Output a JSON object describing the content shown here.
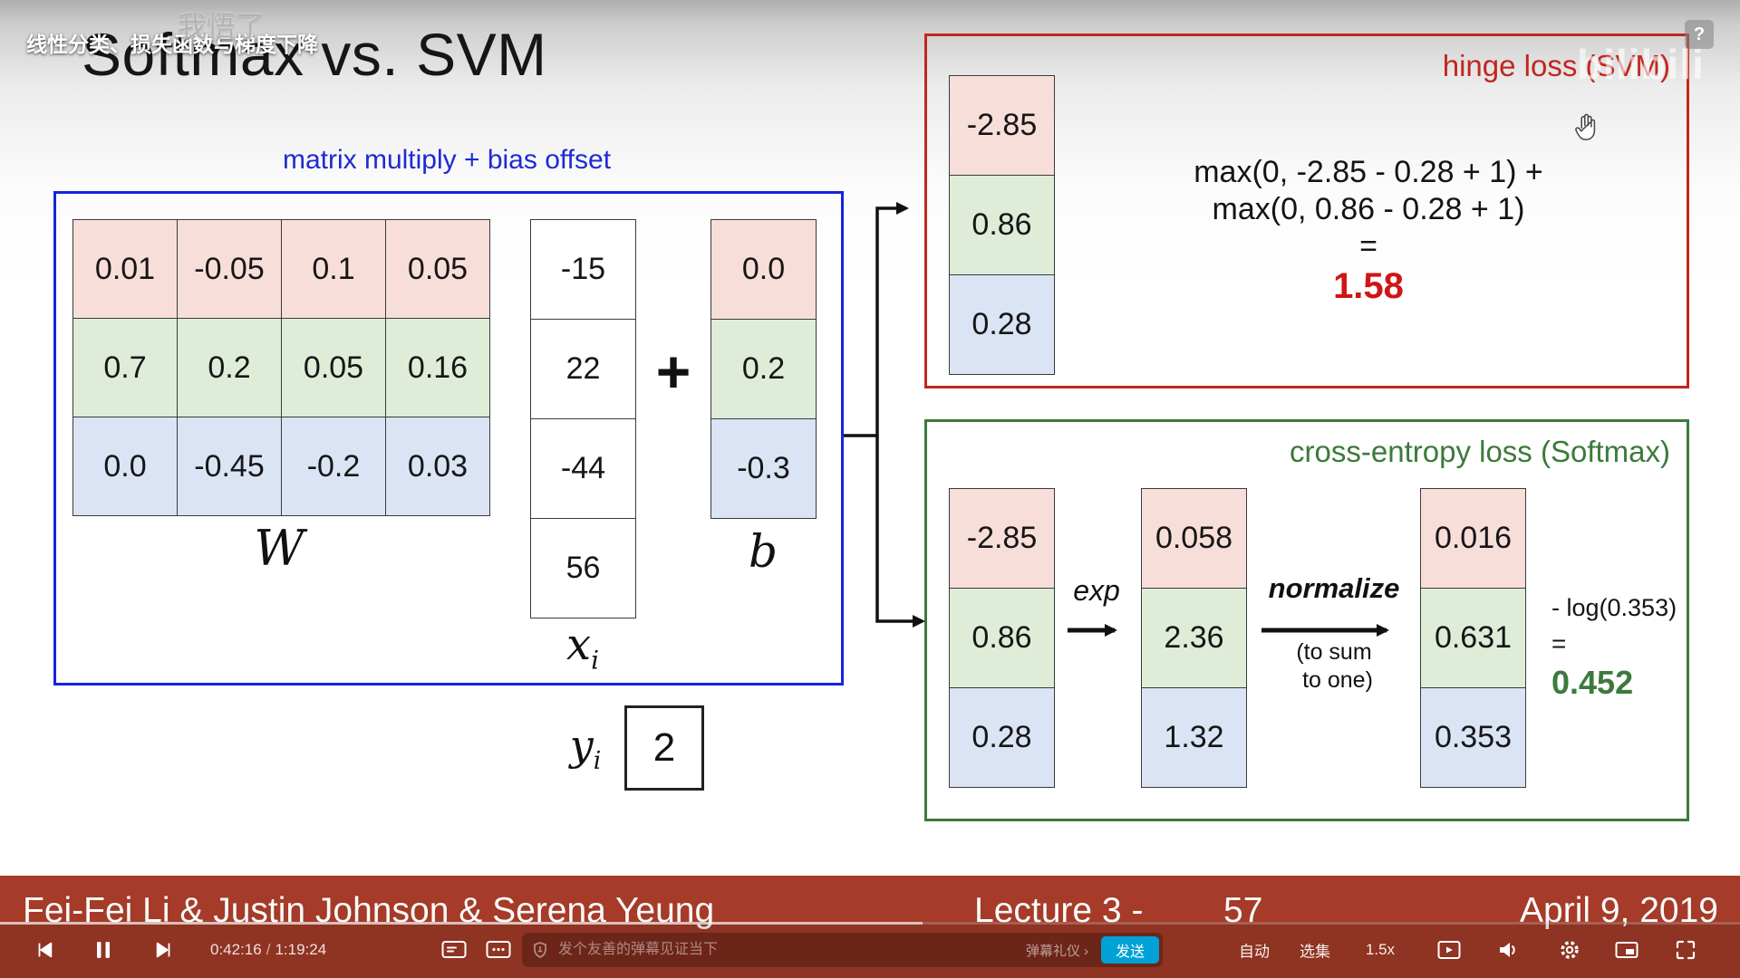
{
  "overlays": {
    "video_title": "线性分类、损失函数与梯度下降",
    "danmaku_comment": "我悟了",
    "help_label": "?",
    "watermark": "bilibili"
  },
  "slide": {
    "title": "Softmax vs. SVM",
    "matrix_caption": "matrix multiply + bias offset",
    "labels": {
      "w": "W",
      "x": "x",
      "b": "b",
      "y": "y",
      "sub_i": "i",
      "plus": "+"
    },
    "w_matrix": {
      "rows": [
        {
          "cells": [
            "0.01",
            "-0.05",
            "0.1",
            "0.05"
          ]
        },
        {
          "cells": [
            "0.7",
            "0.2",
            "0.05",
            "0.16"
          ]
        },
        {
          "cells": [
            "0.0",
            "-0.45",
            "-0.2",
            "0.03"
          ]
        }
      ]
    },
    "x_vector": {
      "cells": [
        "-15",
        "22",
        "-44",
        "56"
      ]
    },
    "b_vector": {
      "cells": [
        "0.0",
        "0.2",
        "-0.3"
      ]
    },
    "y_value": "2",
    "svm": {
      "title": "hinge loss (SVM)",
      "scores": [
        "-2.85",
        "0.86",
        "0.28"
      ],
      "formula_line1": "max(0, -2.85 - 0.28 + 1) +",
      "formula_line2": "max(0, 0.86 - 0.28 + 1)",
      "equals": "=",
      "result": "1.58"
    },
    "softmax": {
      "title": "cross-entropy loss (Softmax)",
      "scores": [
        "-2.85",
        "0.86",
        "0.28"
      ],
      "exp_label": "exp",
      "exp_values": [
        "0.058",
        "2.36",
        "1.32"
      ],
      "normalize_label": "normalize",
      "normalize_note_1": "(to sum",
      "normalize_note_2": "to one)",
      "normalized_values": [
        "0.016",
        "0.631",
        "0.353"
      ],
      "log_expr": "- log(0.353)",
      "equals": "=",
      "result": "0.452"
    }
  },
  "footer": {
    "authors": "Fei-Fei Li & Justin Johnson & Serena Yeung",
    "lecture_label": "Lecture 3 -",
    "slide_number": "57",
    "date": "April 9, 2019"
  },
  "player": {
    "current_time": "0:42:16",
    "time_separator": "/",
    "duration": "1:19:24",
    "progress_percent": 53,
    "danmaku_placeholder": "发个友善的弹幕见证当下",
    "etiquette_label": "弹幕礼仪",
    "etiquette_chevron": "›",
    "send_label": "发送",
    "quality_label": "自动",
    "episodes_label": "选集",
    "speed_label": "1.5x"
  },
  "colors": {
    "accent": "#00a1d6",
    "footer_bg": "#a53b28",
    "svm_red": "#c1271f",
    "softmax_green": "#3c7a3b",
    "slide_blue": "#1722e0",
    "row_pink": "#f8ded9",
    "row_green": "#dfedd8",
    "row_blue": "#dbe4f4"
  }
}
